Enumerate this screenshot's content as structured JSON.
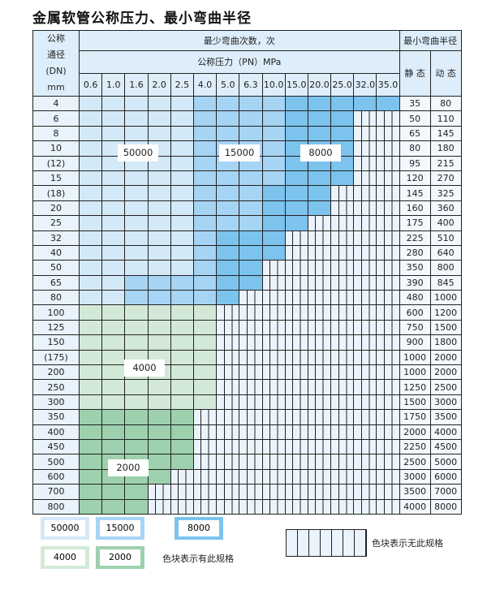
{
  "title": "金属软管公称压力、最小弯曲半径",
  "header": {
    "dn_lines": [
      "公称",
      "通径",
      "(DN)",
      "mm"
    ],
    "cycles": "最少弯曲次数，次",
    "pressure": "公称压力（PN）MPa",
    "radius": "最小弯曲半径",
    "static": "静 态",
    "dynamic": "动 态",
    "pressures": [
      "0.6",
      "1.0",
      "1.6",
      "2.0",
      "2.5",
      "4.0",
      "5.0",
      "6.3",
      "10.0",
      "15.0",
      "20.0",
      "25.0",
      "32.0",
      "35.0"
    ]
  },
  "legend_codes": {
    "a": "50000",
    "b": "15000",
    "c": "8000",
    "d": "4000",
    "e": "2000",
    "x": "none"
  },
  "colors": {
    "a": "#d4e9f8",
    "b": "#a6d4f4",
    "c": "#7cc3ee",
    "d": "#d3e9d8",
    "e": "#9dd1ad",
    "x": "#ebf4fc"
  },
  "rows": [
    {
      "dn": "4",
      "s": "35",
      "d": "80",
      "g": "aaaaabbbbccccc"
    },
    {
      "dn": "6",
      "s": "50",
      "d": "110",
      "g": "aaaaabbbbcccxx"
    },
    {
      "dn": "8",
      "s": "65",
      "d": "145",
      "g": "aaaaabbbbcccxx"
    },
    {
      "dn": "10",
      "s": "80",
      "d": "180",
      "g": "aaaaabbbbcccxx"
    },
    {
      "dn": "(12)",
      "s": "95",
      "d": "215",
      "g": "aaaaabbbbcccxx"
    },
    {
      "dn": "15",
      "s": "120",
      "d": "270",
      "g": "aaaaabbbbcccxx"
    },
    {
      "dn": "(18)",
      "s": "145",
      "d": "325",
      "g": "aaaaabbbcccxxx"
    },
    {
      "dn": "20",
      "s": "160",
      "d": "360",
      "g": "aaaaabbbcccxxx"
    },
    {
      "dn": "25",
      "s": "175",
      "d": "400",
      "g": "aaaaabbbccxxxx"
    },
    {
      "dn": "32",
      "s": "225",
      "d": "510",
      "g": "aaaaabcccxxxxx"
    },
    {
      "dn": "40",
      "s": "280",
      "d": "640",
      "g": "aaaaabcccxxxxx"
    },
    {
      "dn": "50",
      "s": "350",
      "d": "800",
      "g": "aaaaabccxxxxxx"
    },
    {
      "dn": "65",
      "s": "390",
      "d": "845",
      "g": "aabbbbccxxxxxx"
    },
    {
      "dn": "80",
      "s": "480",
      "d": "1000",
      "g": "aabbbbcxxxxxxx"
    },
    {
      "dn": "100",
      "s": "600",
      "d": "1200",
      "g": "ddddddxxxxxxxx"
    },
    {
      "dn": "125",
      "s": "750",
      "d": "1500",
      "g": "ddddddxxxxxxxx"
    },
    {
      "dn": "150",
      "s": "900",
      "d": "1800",
      "g": "ddddddxxxxxxxx"
    },
    {
      "dn": "(175)",
      "s": "1000",
      "d": "2000",
      "g": "ddddddxxxxxxxx"
    },
    {
      "dn": "200",
      "s": "1000",
      "d": "2000",
      "g": "ddddddxxxxxxxx"
    },
    {
      "dn": "250",
      "s": "1250",
      "d": "2500",
      "g": "ddddddxxxxxxxx"
    },
    {
      "dn": "300",
      "s": "1500",
      "d": "3000",
      "g": "ddddddxxxxxxxx"
    },
    {
      "dn": "350",
      "s": "1750",
      "d": "3500",
      "g": "eeeeexxxxxxxxx"
    },
    {
      "dn": "400",
      "s": "2000",
      "d": "4000",
      "g": "eeeeexxxxxxxxx"
    },
    {
      "dn": "450",
      "s": "2250",
      "d": "4500",
      "g": "eeeeexxxxxxxxx"
    },
    {
      "dn": "500",
      "s": "2500",
      "d": "5000",
      "g": "eeeeexxxxxxxxx"
    },
    {
      "dn": "600",
      "s": "3000",
      "d": "6000",
      "g": "eeeexxxxxxxxxx"
    },
    {
      "dn": "700",
      "s": "3500",
      "d": "7000",
      "g": "eeexxxxxxxxxxx"
    },
    {
      "dn": "800",
      "s": "4000",
      "d": "8000",
      "g": "eeexxxxxxxxxxx"
    }
  ],
  "region_labels": {
    "a": "50000",
    "b": "15000",
    "c": "8000",
    "d": "4000",
    "e": "2000"
  },
  "legend": {
    "items": [
      "50000",
      "15000",
      "8000",
      "4000",
      "2000"
    ],
    "has_spec": "色块表示有此规格",
    "no_spec": "色块表示无此规格"
  }
}
